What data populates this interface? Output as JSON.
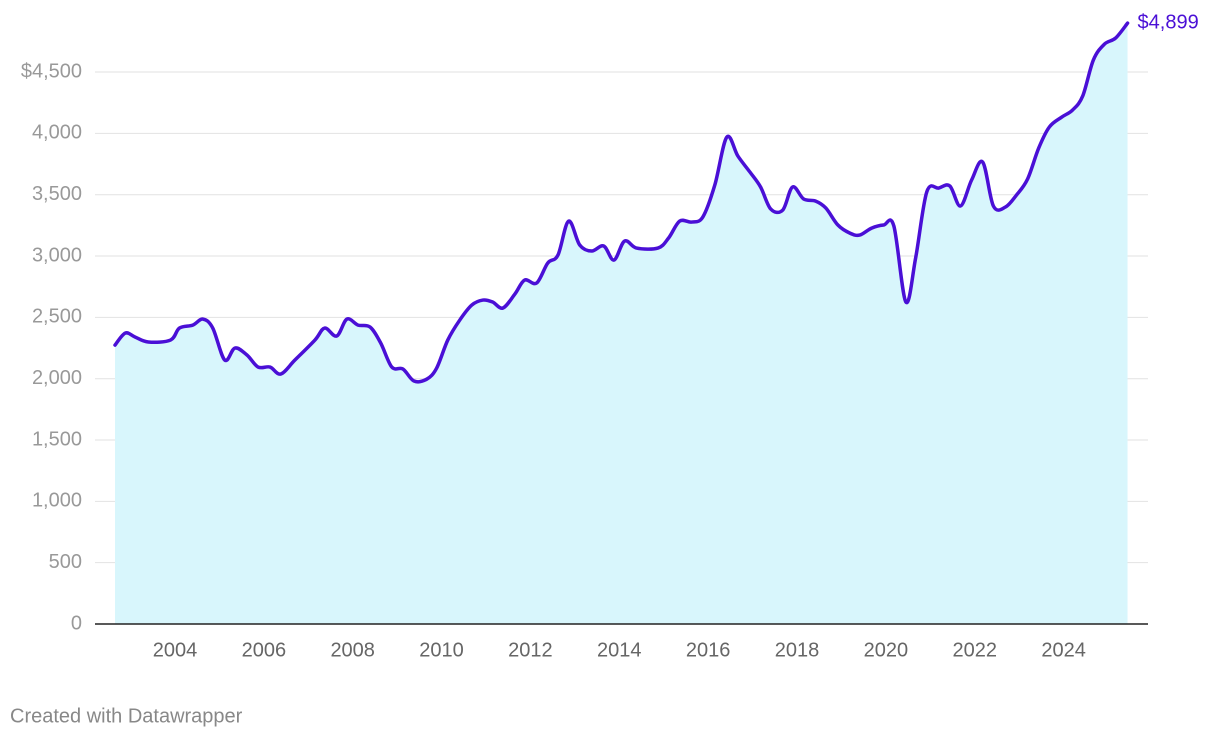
{
  "chart_data": {
    "type": "area",
    "x": [
      2002.65,
      2002.88,
      2003.1,
      2003.4,
      2003.9,
      2004.1,
      2004.4,
      2004.63,
      2004.85,
      2005.12,
      2005.35,
      2005.62,
      2005.87,
      2006.14,
      2006.38,
      2006.7,
      2007.15,
      2007.37,
      2007.64,
      2007.87,
      2008.12,
      2008.39,
      2008.63,
      2008.88,
      2009.13,
      2009.38,
      2009.67,
      2009.89,
      2010.14,
      2010.41,
      2010.68,
      2010.93,
      2011.15,
      2011.38,
      2011.65,
      2011.87,
      2012.14,
      2012.39,
      2012.62,
      2012.86,
      2013.11,
      2013.38,
      2013.65,
      2013.88,
      2014.12,
      2014.39,
      2014.87,
      2015.11,
      2015.36,
      2015.63,
      2015.88,
      2016.15,
      2016.42,
      2016.67,
      2016.94,
      2017.18,
      2017.41,
      2017.68,
      2017.9,
      2018.15,
      2018.42,
      2018.65,
      2018.92,
      2019.19,
      2019.41,
      2019.68,
      2019.95,
      2020.18,
      2020.45,
      2020.67,
      2020.92,
      2021.19,
      2021.44,
      2021.68,
      2021.93,
      2022.18,
      2022.42,
      2022.69,
      2022.94,
      2023.19,
      2023.44,
      2023.68,
      2023.96,
      2024.2,
      2024.43,
      2024.67,
      2024.92,
      2025.17,
      2025.44
    ],
    "values": [
      2274,
      2372,
      2340,
      2299,
      2315,
      2413,
      2437,
      2486,
      2413,
      2152,
      2250,
      2193,
      2095,
      2095,
      2038,
      2152,
      2315,
      2413,
      2348,
      2486,
      2437,
      2421,
      2291,
      2095,
      2079,
      1981,
      1997,
      2087,
      2315,
      2478,
      2600,
      2641,
      2625,
      2576,
      2690,
      2804,
      2780,
      2943,
      3008,
      3285,
      3090,
      3041,
      3082,
      2967,
      3122,
      3065,
      3065,
      3147,
      3285,
      3277,
      3318,
      3579,
      3970,
      3815,
      3685,
      3563,
      3383,
      3375,
      3563,
      3465,
      3448,
      3391,
      3253,
      3187,
      3171,
      3228,
      3253,
      3245,
      2625,
      2984,
      3522,
      3554,
      3571,
      3408,
      3620,
      3766,
      3408,
      3399,
      3497,
      3628,
      3880,
      4052,
      4133,
      4190,
      4304,
      4598,
      4728,
      4777,
      4899
    ],
    "value_labels": [
      null,
      null,
      null,
      null,
      null,
      null,
      null,
      null,
      null,
      null,
      null,
      null,
      null,
      null,
      null,
      null,
      null,
      null,
      null,
      null,
      null,
      null,
      null,
      null,
      null,
      null,
      null,
      null,
      null,
      null,
      null,
      null,
      null,
      null,
      null,
      null,
      null,
      null,
      null,
      null,
      null,
      null,
      null,
      null,
      null,
      null,
      null,
      null,
      null,
      null,
      null,
      null,
      null,
      null,
      null,
      null,
      null,
      null,
      null,
      null,
      null,
      null,
      null,
      null,
      null,
      null,
      null,
      null,
      null,
      null,
      null,
      null,
      null,
      null,
      null,
      null,
      null,
      null,
      null,
      null,
      null,
      null,
      null,
      null,
      null,
      null,
      null,
      null,
      "$4,899"
    ],
    "color": "#4a0fd6",
    "fill": "#d8f6fc",
    "xlim": [
      2002.2,
      2025.9
    ],
    "xticks": [
      2004,
      2006,
      2008,
      2010,
      2012,
      2014,
      2016,
      2018,
      2020,
      2022,
      2024
    ],
    "ylim": [
      0,
      4900
    ],
    "yticks": [
      0,
      500,
      {
        "value": 1000,
        "label": "1,000"
      },
      {
        "value": 1500,
        "label": "1,500"
      },
      {
        "value": 2000,
        "label": "2,000"
      },
      {
        "value": 2500,
        "label": "2,500"
      },
      {
        "value": 3000,
        "label": "3,000"
      },
      {
        "value": 3500,
        "label": "3,500"
      },
      {
        "value": 4000,
        "label": "4,000"
      },
      {
        "value": 4500,
        "label": "$4,500"
      }
    ],
    "grid": true,
    "credit": "Created with Datawrapper"
  }
}
